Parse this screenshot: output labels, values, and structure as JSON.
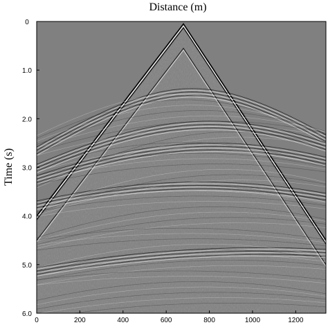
{
  "chart_data": {
    "type": "heatmap",
    "subtype": "seismic-shot-gather",
    "title": "",
    "xlabel": "Distance (m)",
    "ylabel": "Time (s)",
    "xlim": [
      0,
      1340
    ],
    "ylim": [
      0,
      6.0
    ],
    "y_inverted": true,
    "x_axis_position": "top-title, bottom-ticks",
    "x_ticks": [
      0,
      200,
      400,
      600,
      800,
      1000,
      1200
    ],
    "x_tick_labels": [
      "0",
      "200",
      "400",
      "600",
      "800",
      "1000",
      "1200"
    ],
    "y_ticks": [
      0,
      1.0,
      2.0,
      3.0,
      4.0,
      5.0,
      6.0
    ],
    "y_tick_labels": [
      "0",
      "1.0",
      "2.0",
      "3.0",
      "4.0",
      "5.0",
      "6.0"
    ],
    "grid": false,
    "colormap": "grayscale",
    "background_color": "#808080",
    "events": [
      {
        "kind": "direct-wave",
        "apex_x": 680,
        "apex_t": 0.05,
        "left_end": [
          0,
          4.0
        ],
        "right_end": [
          1340,
          4.5
        ]
      },
      {
        "kind": "reflection",
        "apex_x": 720,
        "apex_t": 1.38,
        "velocity_hint": "hyperbola",
        "ends_t": [
          4.5,
          4.3
        ]
      },
      {
        "kind": "reflection",
        "apex_x": 800,
        "apex_t": 2.05
      },
      {
        "kind": "reflection",
        "apex_x": 820,
        "apex_t": 2.5
      },
      {
        "kind": "reflection",
        "apex_x": 760,
        "apex_t": 3.3
      },
      {
        "kind": "reflection",
        "apex_x": 1040,
        "apex_t": 4.65
      }
    ]
  }
}
